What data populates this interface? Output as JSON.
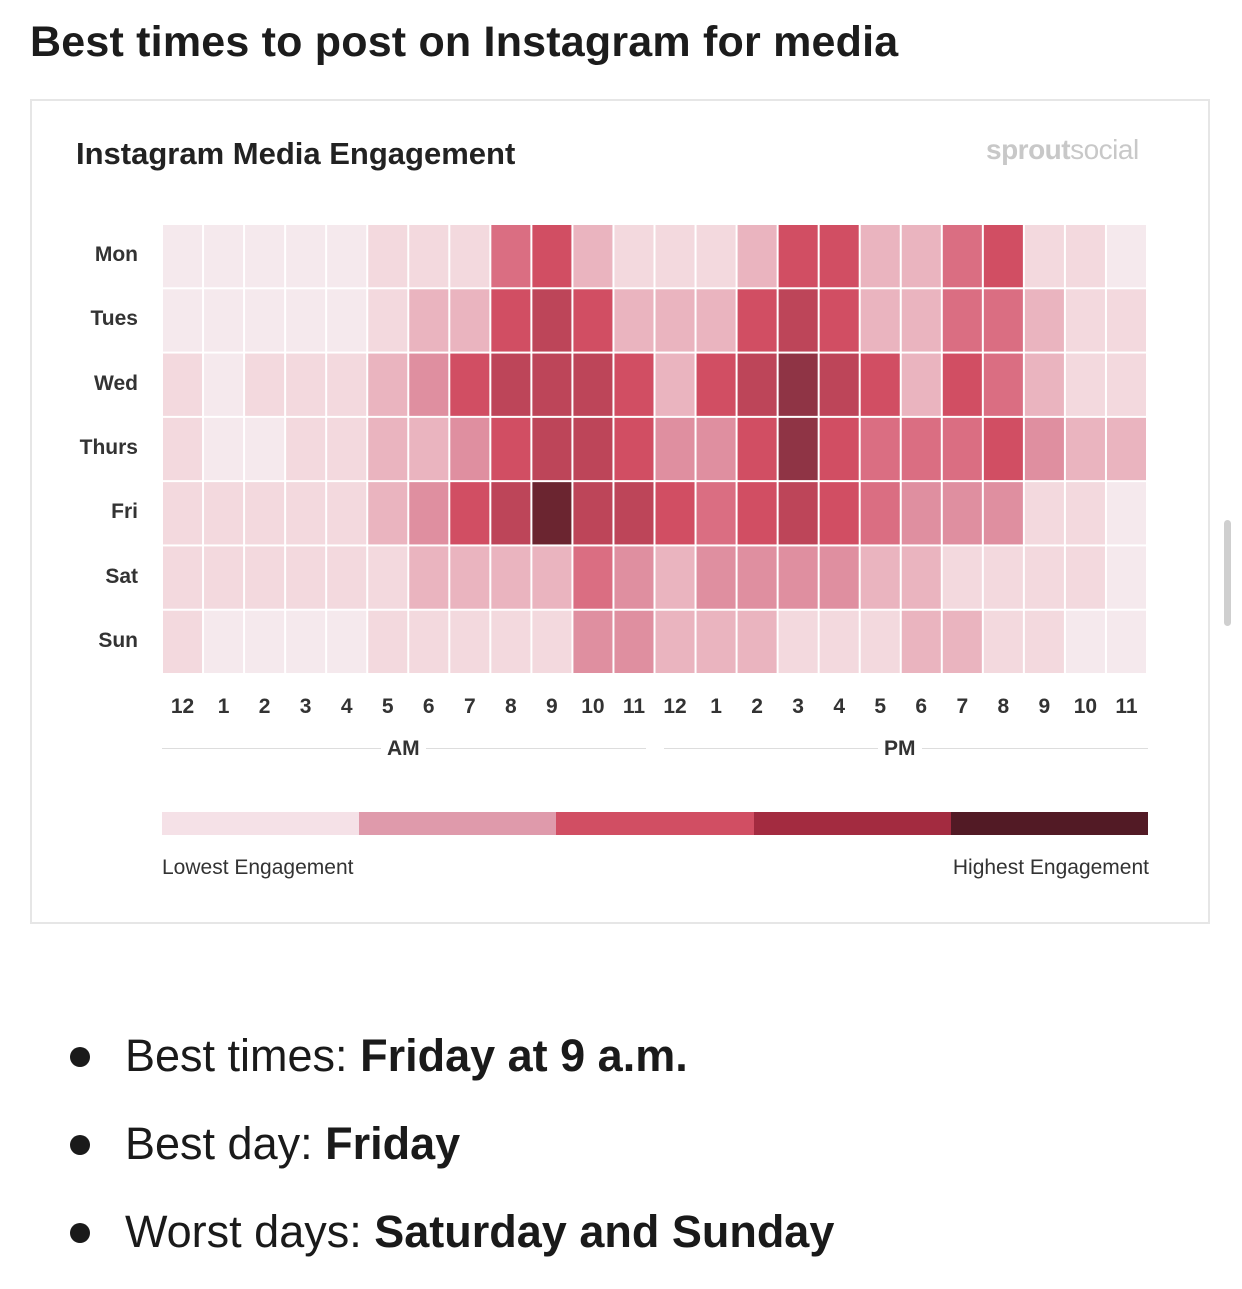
{
  "page_title": "Best times to post on Instagram for media",
  "chart_data": {
    "type": "heatmap",
    "title": "Instagram Media Engagement",
    "brand": {
      "prefix": "sprout",
      "suffix": "social"
    },
    "rows": [
      "Mon",
      "Tues",
      "Wed",
      "Thurs",
      "Fri",
      "Sat",
      "Sun"
    ],
    "columns": [
      "12",
      "1",
      "2",
      "3",
      "4",
      "5",
      "6",
      "7",
      "8",
      "9",
      "10",
      "11",
      "12",
      "1",
      "2",
      "3",
      "4",
      "5",
      "6",
      "7",
      "8",
      "9",
      "10",
      "11"
    ],
    "periods": [
      "AM",
      "PM"
    ],
    "value_scale": "engagement level 0 (lowest) to 8 (highest)",
    "values": [
      [
        0,
        0,
        0,
        0,
        0,
        1,
        1,
        1,
        4,
        5,
        2,
        1,
        1,
        1,
        2,
        5,
        5,
        2,
        2,
        4,
        5,
        1,
        1,
        0
      ],
      [
        0,
        0,
        0,
        0,
        0,
        1,
        2,
        2,
        5,
        6,
        5,
        2,
        2,
        2,
        5,
        6,
        5,
        2,
        2,
        4,
        4,
        2,
        1,
        1
      ],
      [
        1,
        0,
        1,
        1,
        1,
        2,
        3,
        5,
        6,
        6,
        6,
        5,
        2,
        5,
        6,
        7,
        6,
        5,
        2,
        5,
        4,
        2,
        1,
        1
      ],
      [
        1,
        0,
        0,
        1,
        1,
        2,
        2,
        3,
        5,
        6,
        6,
        5,
        3,
        3,
        5,
        7,
        5,
        4,
        4,
        4,
        5,
        3,
        2,
        2
      ],
      [
        1,
        1,
        1,
        1,
        1,
        2,
        3,
        5,
        6,
        8,
        6,
        6,
        5,
        4,
        5,
        6,
        5,
        4,
        3,
        3,
        3,
        1,
        1,
        0
      ],
      [
        1,
        1,
        1,
        1,
        1,
        1,
        2,
        2,
        2,
        2,
        4,
        3,
        2,
        3,
        3,
        3,
        3,
        2,
        2,
        1,
        1,
        1,
        1,
        0
      ],
      [
        1,
        0,
        0,
        0,
        0,
        1,
        1,
        1,
        1,
        1,
        3,
        3,
        2,
        2,
        2,
        1,
        1,
        1,
        2,
        2,
        1,
        1,
        0,
        0
      ]
    ],
    "color_scale": [
      "#f5e9ed",
      "#f3d9de",
      "#eab4bf",
      "#df8fa0",
      "#da6e82",
      "#d14e63",
      "#bd4559",
      "#8f3445",
      "#6b2530"
    ],
    "legend": {
      "colors": [
        "#f5e1e7",
        "#df9aab",
        "#d14e63",
        "#a32b40",
        "#521a25"
      ],
      "low_label": "Lowest Engagement",
      "high_label": "Highest Engagement"
    }
  },
  "bullets": [
    {
      "label": "Best times: ",
      "value": "Friday at 9 a.m."
    },
    {
      "label": "Best day: ",
      "value": "Friday"
    },
    {
      "label": "Worst days: ",
      "value": "Saturday and Sunday"
    }
  ]
}
